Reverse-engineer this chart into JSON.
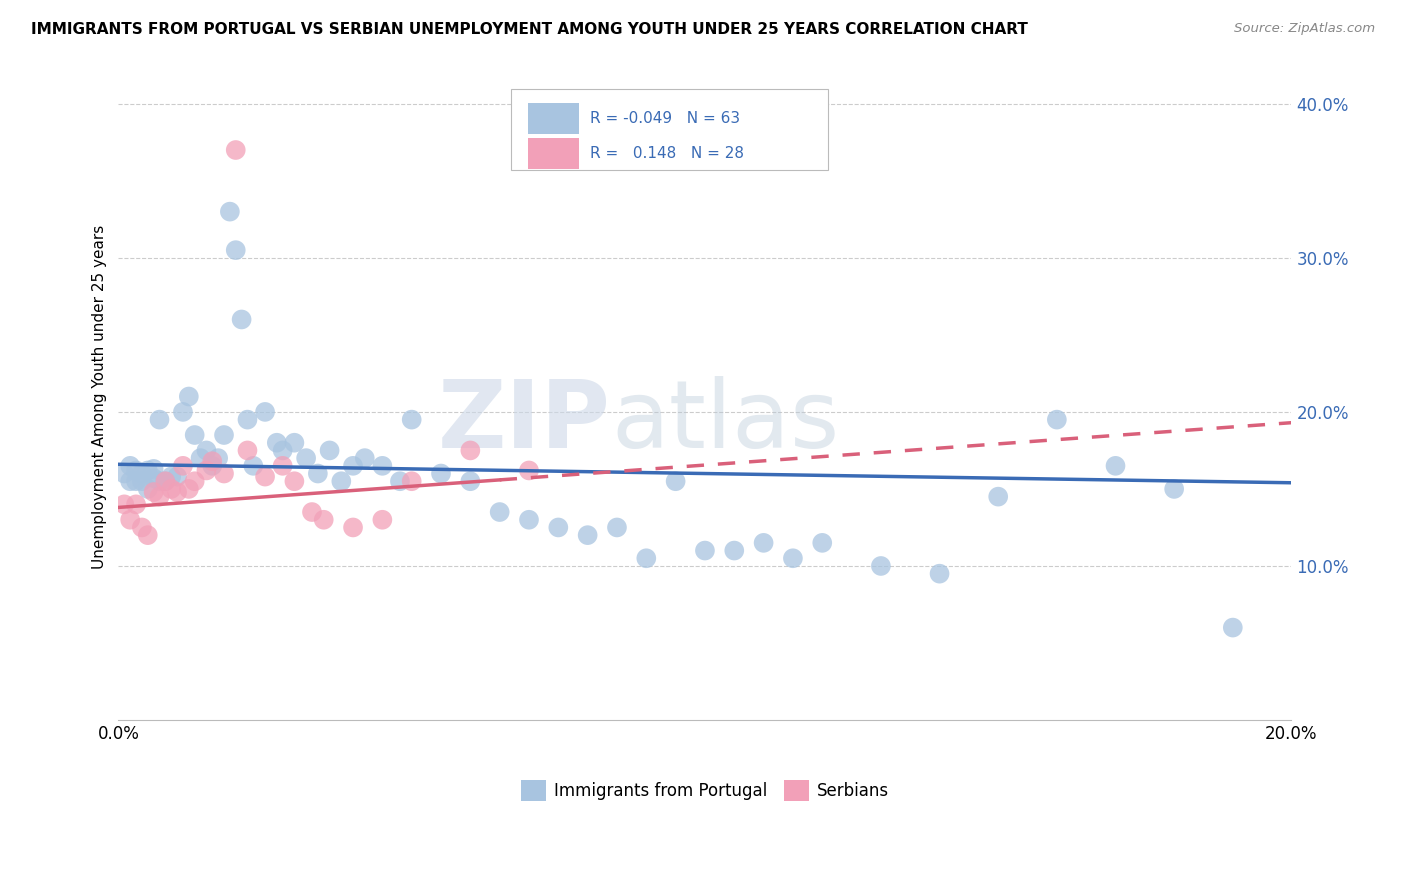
{
  "title": "IMMIGRANTS FROM PORTUGAL VS SERBIAN UNEMPLOYMENT AMONG YOUTH UNDER 25 YEARS CORRELATION CHART",
  "source": "Source: ZipAtlas.com",
  "ylabel": "Unemployment Among Youth under 25 years",
  "xlim": [
    0.0,
    0.2
  ],
  "ylim": [
    0.0,
    0.42
  ],
  "yticks": [
    0.1,
    0.2,
    0.3,
    0.4
  ],
  "ytick_labels": [
    "10.0%",
    "20.0%",
    "30.0%",
    "40.0%"
  ],
  "r_blue": -0.049,
  "n_blue": 63,
  "r_pink": 0.148,
  "n_pink": 28,
  "blue_scatter_x": [
    0.001,
    0.002,
    0.002,
    0.003,
    0.003,
    0.004,
    0.004,
    0.005,
    0.005,
    0.006,
    0.006,
    0.007,
    0.007,
    0.008,
    0.009,
    0.01,
    0.011,
    0.012,
    0.013,
    0.014,
    0.015,
    0.016,
    0.017,
    0.018,
    0.019,
    0.02,
    0.021,
    0.022,
    0.023,
    0.025,
    0.027,
    0.028,
    0.03,
    0.032,
    0.034,
    0.036,
    0.038,
    0.04,
    0.042,
    0.045,
    0.048,
    0.05,
    0.055,
    0.06,
    0.065,
    0.07,
    0.075,
    0.08,
    0.085,
    0.09,
    0.095,
    0.1,
    0.105,
    0.11,
    0.115,
    0.12,
    0.13,
    0.14,
    0.15,
    0.16,
    0.17,
    0.18,
    0.19
  ],
  "blue_scatter_y": [
    0.16,
    0.155,
    0.165,
    0.155,
    0.162,
    0.155,
    0.16,
    0.15,
    0.162,
    0.157,
    0.163,
    0.155,
    0.195,
    0.155,
    0.158,
    0.158,
    0.2,
    0.21,
    0.185,
    0.17,
    0.175,
    0.165,
    0.17,
    0.185,
    0.33,
    0.305,
    0.26,
    0.195,
    0.165,
    0.2,
    0.18,
    0.175,
    0.18,
    0.17,
    0.16,
    0.175,
    0.155,
    0.165,
    0.17,
    0.165,
    0.155,
    0.195,
    0.16,
    0.155,
    0.135,
    0.13,
    0.125,
    0.12,
    0.125,
    0.105,
    0.155,
    0.11,
    0.11,
    0.115,
    0.105,
    0.115,
    0.1,
    0.095,
    0.145,
    0.195,
    0.165,
    0.15,
    0.06
  ],
  "pink_scatter_x": [
    0.001,
    0.002,
    0.003,
    0.004,
    0.005,
    0.006,
    0.007,
    0.008,
    0.009,
    0.01,
    0.011,
    0.012,
    0.013,
    0.015,
    0.016,
    0.018,
    0.02,
    0.022,
    0.025,
    0.028,
    0.03,
    0.033,
    0.035,
    0.04,
    0.045,
    0.05,
    0.06,
    0.07
  ],
  "pink_scatter_y": [
    0.14,
    0.13,
    0.14,
    0.125,
    0.12,
    0.148,
    0.145,
    0.155,
    0.15,
    0.148,
    0.165,
    0.15,
    0.155,
    0.162,
    0.168,
    0.16,
    0.37,
    0.175,
    0.158,
    0.165,
    0.155,
    0.135,
    0.13,
    0.125,
    0.13,
    0.155,
    0.175,
    0.162
  ],
  "background_color": "#ffffff",
  "grid_color": "#cccccc",
  "blue_line_color": "#3a6bb5",
  "pink_line_color": "#d9607a",
  "scatter_blue_color": "#a8c4e0",
  "scatter_pink_color": "#f2a0b8",
  "watermark_color": "#cdd8e8",
  "tick_label_color": "#3a6bb5"
}
